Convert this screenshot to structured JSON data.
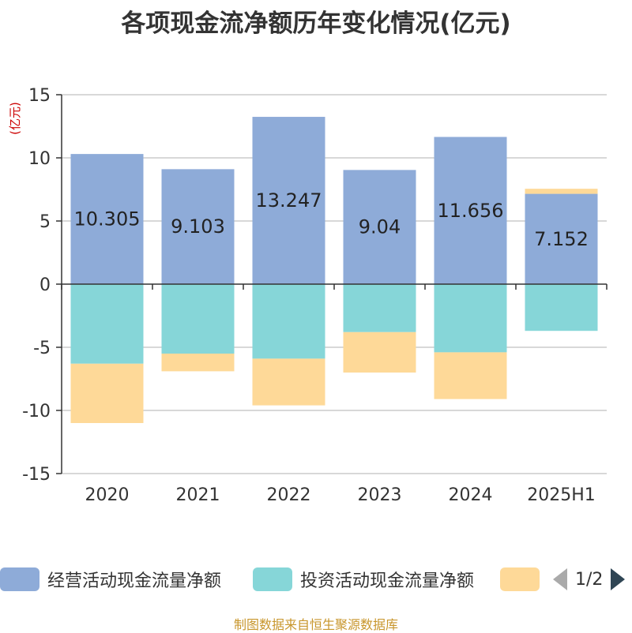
{
  "title": "各项现金流净额历年变化情况(亿元)",
  "unit_label": "(亿元)",
  "source": "制图数据来自恒生聚源数据库",
  "legend": {
    "items": [
      {
        "label": "经营活动现金流量净额",
        "color": "#8eabd8"
      },
      {
        "label": "投资活动现金流量净额",
        "color": "#86d6d8"
      },
      {
        "label": "",
        "color": "#fed998"
      }
    ],
    "page": "1/2"
  },
  "chart_data": {
    "type": "bar",
    "stacked": true,
    "categories": [
      "2020",
      "2021",
      "2022",
      "2023",
      "2024",
      "2025H1"
    ],
    "series": [
      {
        "name": "经营活动现金流量净额",
        "color": "#8eabd8",
        "values": [
          10.305,
          9.103,
          13.247,
          9.04,
          11.656,
          7.152
        ],
        "labels": [
          "10.305",
          "9.103",
          "13.247",
          "9.04",
          "11.656",
          "7.152"
        ]
      },
      {
        "name": "投资活动现金流量净额",
        "color": "#86d6d8",
        "values": [
          -6.3,
          -5.5,
          -5.9,
          -3.8,
          -5.4,
          -3.7
        ]
      },
      {
        "color": "#fed998",
        "values": [
          -4.7,
          -1.4,
          -3.7,
          -3.2,
          -3.7,
          0.4
        ]
      }
    ],
    "ylim": [
      -15,
      15
    ],
    "yticks": [
      15,
      10,
      5,
      0,
      -5,
      -10,
      -15
    ],
    "grid": true
  }
}
